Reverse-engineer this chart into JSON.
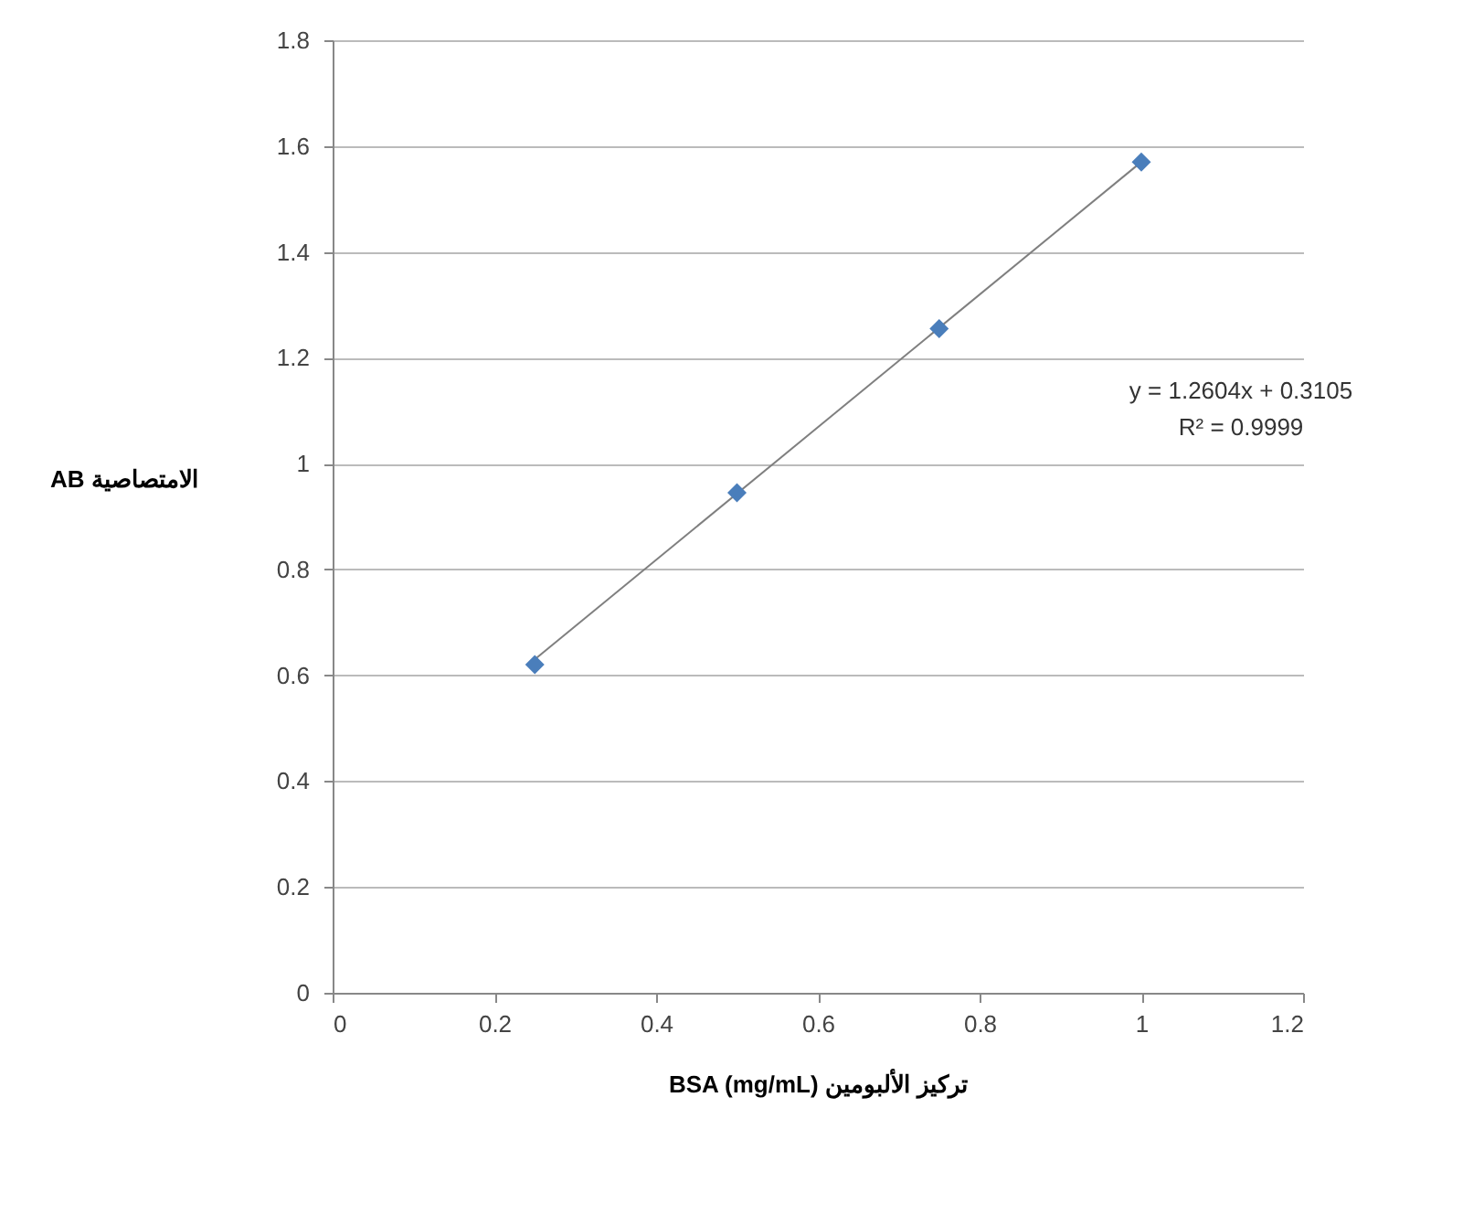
{
  "chart_data": {
    "type": "scatter",
    "xlabel": "BSA (mg/mL)   تركيز الألبومين",
    "ylabel": "AB الامتصاصية",
    "x": [
      0.25,
      0.5,
      0.75,
      1
    ],
    "series": [
      {
        "color": "#4a7ebb",
        "marker": "diamond",
        "values": [
          0.62,
          0.945,
          1.255,
          1.57
        ]
      },
      {
        "type": "line",
        "color": "#7f7f7f",
        "x": [
          0.25,
          1
        ],
        "values": [
          0.63,
          1.57
        ]
      }
    ],
    "xlim": [
      0,
      1.2
    ],
    "xticks": [
      0,
      0.2,
      0.4,
      0.6,
      0.8,
      1,
      1.2
    ],
    "ylim": [
      0,
      1.8
    ],
    "yticks": [
      0,
      0.2,
      0.4,
      0.6,
      0.8,
      1,
      1.2,
      1.4,
      1.6,
      1.8
    ],
    "grid": "y",
    "annotations": [
      "y = 1.2604x + 0.3105",
      "R² = 0.9999"
    ]
  }
}
